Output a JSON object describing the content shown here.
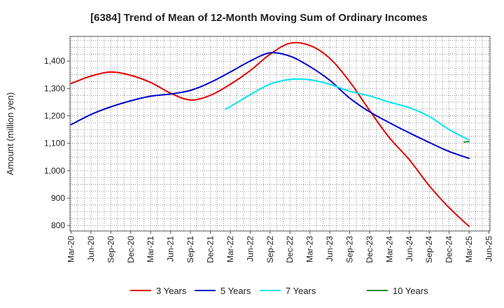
{
  "chart_data": {
    "type": "line",
    "title": "[6384]  Trend of Mean of 12-Month Moving Sum of Ordinary Incomes",
    "xlabel": "",
    "ylabel": "Amount (million yen)",
    "ylim": [
      780,
      1490
    ],
    "yticks": [
      800,
      900,
      1000,
      1100,
      1200,
      1300,
      1400
    ],
    "ytick_labels": [
      "800",
      "900",
      "1,000",
      "1,100",
      "1,200",
      "1,300",
      "1,400"
    ],
    "x_categories": [
      "Mar-20",
      "Jun-20",
      "Sep-20",
      "Dec-20",
      "Mar-21",
      "Jun-21",
      "Sep-21",
      "Dec-21",
      "Mar-22",
      "Jun-22",
      "Sep-22",
      "Dec-22",
      "Mar-23",
      "Jun-23",
      "Sep-23",
      "Dec-23",
      "Mar-24",
      "Jun-24",
      "Sep-24",
      "Dec-24",
      "Mar-25",
      "Jun-25"
    ],
    "grid": true,
    "legend_position": "bottom",
    "series": [
      {
        "name": "3 Years",
        "color": "#e00000",
        "points": [
          [
            0,
            1318
          ],
          [
            1,
            1345
          ],
          [
            2,
            1360
          ],
          [
            3,
            1348
          ],
          [
            4,
            1322
          ],
          [
            5,
            1283
          ],
          [
            6,
            1258
          ],
          [
            7,
            1275
          ],
          [
            8,
            1315
          ],
          [
            9,
            1365
          ],
          [
            10,
            1425
          ],
          [
            11,
            1465
          ],
          [
            12,
            1457
          ],
          [
            13,
            1410
          ],
          [
            14,
            1325
          ],
          [
            15,
            1220
          ],
          [
            16,
            1120
          ],
          [
            17,
            1040
          ],
          [
            18,
            945
          ],
          [
            19,
            865
          ],
          [
            20,
            797
          ]
        ]
      },
      {
        "name": "5 Years",
        "color": "#0000cc",
        "points": [
          [
            0,
            1168
          ],
          [
            1,
            1205
          ],
          [
            2,
            1233
          ],
          [
            3,
            1255
          ],
          [
            4,
            1272
          ],
          [
            5,
            1280
          ],
          [
            6,
            1293
          ],
          [
            7,
            1322
          ],
          [
            8,
            1360
          ],
          [
            9,
            1400
          ],
          [
            10,
            1430
          ],
          [
            11,
            1418
          ],
          [
            12,
            1380
          ],
          [
            13,
            1330
          ],
          [
            14,
            1265
          ],
          [
            15,
            1215
          ],
          [
            16,
            1175
          ],
          [
            17,
            1138
          ],
          [
            18,
            1103
          ],
          [
            19,
            1070
          ],
          [
            20,
            1045
          ]
        ]
      },
      {
        "name": "7 Years",
        "color": "#00e5ee",
        "points": [
          [
            7.75,
            1225
          ],
          [
            8,
            1234
          ],
          [
            9,
            1277
          ],
          [
            10,
            1316
          ],
          [
            11,
            1333
          ],
          [
            12,
            1332
          ],
          [
            13,
            1315
          ],
          [
            14,
            1290
          ],
          [
            15,
            1273
          ],
          [
            16,
            1250
          ],
          [
            17,
            1230
          ],
          [
            18,
            1198
          ],
          [
            19,
            1150
          ],
          [
            20,
            1112
          ]
        ]
      },
      {
        "name": "10 Years",
        "color": "#228b22",
        "points": [
          [
            19.75,
            1105
          ],
          [
            20,
            1106
          ]
        ]
      }
    ]
  }
}
